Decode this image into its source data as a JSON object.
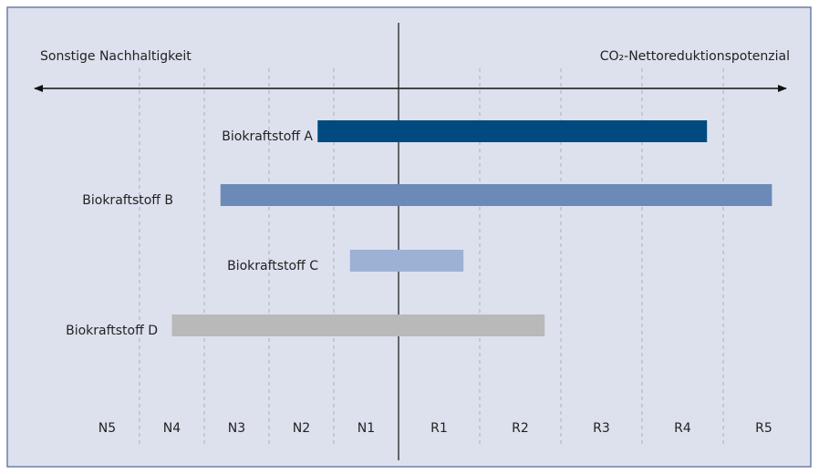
{
  "chart_data": {
    "type": "range_bar",
    "x_label_left": "Sonstige Nachhaltigkeit",
    "x_label_right": "CO₂-Nettoreduktionspotenzial",
    "categories": [
      "Biokraftstoff A",
      "Biokraftstoff B",
      "Biokraftstoff C",
      "Biokraftstoff D"
    ],
    "series": [
      {
        "name": "start",
        "values": [
          -1.25,
          -2.75,
          -0.75,
          -3.5
        ]
      },
      {
        "name": "end",
        "values": [
          3.8,
          4.6,
          0.8,
          1.8
        ]
      }
    ],
    "colors": [
      "#004a80",
      "#6b8ab8",
      "#9db1d5",
      "#b9b9b9"
    ],
    "xlim": [
      -5,
      5
    ],
    "xticks": [
      {
        "value": -4.5,
        "label": "N5"
      },
      {
        "value": -3.5,
        "label": "N4"
      },
      {
        "value": -2.5,
        "label": "N3"
      },
      {
        "value": -1.5,
        "label": "N2"
      },
      {
        "value": -0.5,
        "label": "N1"
      },
      {
        "value": 0.5,
        "label": "R1"
      },
      {
        "value": 1.5,
        "label": "R2"
      },
      {
        "value": 2.5,
        "label": "R3"
      },
      {
        "value": 3.5,
        "label": "R4"
      },
      {
        "value": 4.5,
        "label": "R5"
      }
    ],
    "grid": true
  }
}
